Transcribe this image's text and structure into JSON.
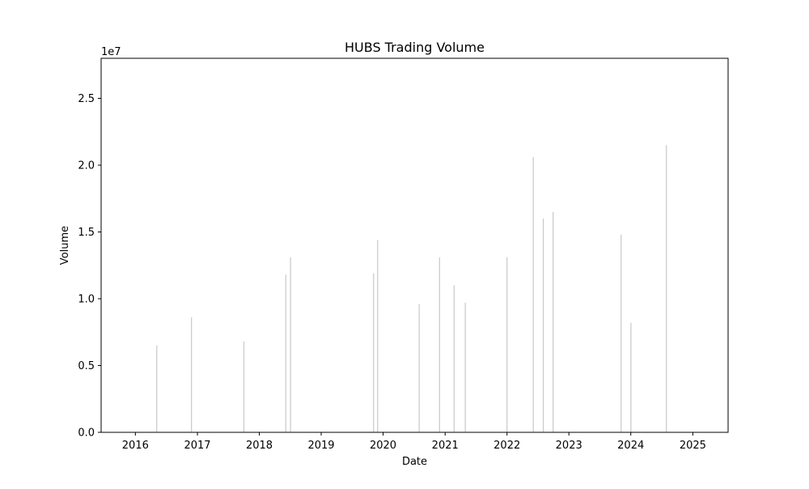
{
  "chart_data": {
    "type": "bar",
    "title": "HUBS Trading Volume",
    "xlabel": "Date",
    "ylabel": "Volume",
    "y_offset_label": "1e7",
    "bar_color": "#c8c8c8",
    "x_tick_labels": [
      "2016",
      "2017",
      "2018",
      "2019",
      "2020",
      "2021",
      "2022",
      "2023",
      "2024",
      "2025"
    ],
    "y_ticks": [
      0,
      5000000,
      10000000,
      15000000,
      20000000,
      25000000
    ],
    "y_tick_labels": [
      "0.0",
      "0.5",
      "1.0",
      "1.5",
      "2.0",
      "2.5"
    ],
    "xlim": [
      "2015-06-13",
      "2025-07-28"
    ],
    "ylim": [
      0,
      28000000
    ],
    "grid": false,
    "x": [
      "2016-05-06",
      "2016-11-27",
      "2017-10-02",
      "2018-06-06",
      "2018-07-04",
      "2019-11-06",
      "2019-11-30",
      "2020-08-01",
      "2020-11-29",
      "2021-02-23",
      "2021-04-30",
      "2022-01-01",
      "2022-06-05",
      "2022-08-03",
      "2022-09-30",
      "2023-11-05",
      "2024-01-02",
      "2024-07-29"
    ],
    "values": [
      6500000,
      8600000,
      6800000,
      11800000,
      13100000,
      11900000,
      14400000,
      9600000,
      13100000,
      11000000,
      9700000,
      13100000,
      20600000,
      16000000,
      16500000,
      14800000,
      8200000,
      21500000
    ]
  }
}
